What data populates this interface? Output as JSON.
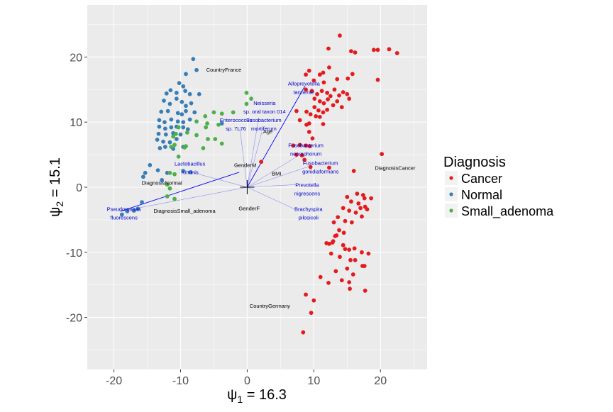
{
  "chart_data": {
    "type": "scatter",
    "xlabel_symbol": "ψ",
    "xlabel_sub": "1",
    "xlabel_rest": " = 16.3",
    "ylabel_symbol": "ψ",
    "ylabel_sub": "2",
    "ylabel_rest": " = 15.1",
    "xlim": [
      -24,
      27
    ],
    "ylim": [
      -28,
      28
    ],
    "x_ticks": [
      -20,
      -10,
      0,
      10,
      20
    ],
    "y_ticks": [
      -20,
      -10,
      0,
      10,
      20
    ],
    "x_tick_labels": [
      "-20",
      "-10",
      "0",
      "10",
      "20"
    ],
    "y_tick_labels": [
      "-20",
      "-10",
      "0",
      "10",
      "20"
    ],
    "grid": true,
    "legend": {
      "title": "Diagnosis",
      "placement": "right"
    },
    "series": [
      {
        "name": "Cancer",
        "color": "#e41a1c",
        "points": [
          [
            13.9,
            23.3
          ],
          [
            12.2,
            21.3
          ],
          [
            15.6,
            20.9
          ],
          [
            16.2,
            20.7
          ],
          [
            19.0,
            21.1
          ],
          [
            19.6,
            21.1
          ],
          [
            21.3,
            21.2
          ],
          [
            22.5,
            20.6
          ],
          [
            8.8,
            17.3
          ],
          [
            9.3,
            17.9
          ],
          [
            10.9,
            17.3
          ],
          [
            12.3,
            18.4
          ],
          [
            11.4,
            17.6
          ],
          [
            10.0,
            16.4
          ],
          [
            11.5,
            16.1
          ],
          [
            13.5,
            16.6
          ],
          [
            15.1,
            16.7
          ],
          [
            15.8,
            17.4
          ],
          [
            19.6,
            16.5
          ],
          [
            8.8,
            15.0
          ],
          [
            9.7,
            14.8
          ],
          [
            10.5,
            14.3
          ],
          [
            11.2,
            14.8
          ],
          [
            12.0,
            14.5
          ],
          [
            12.5,
            14.0
          ],
          [
            13.1,
            15.0
          ],
          [
            13.8,
            14.1
          ],
          [
            14.4,
            14.6
          ],
          [
            15.0,
            14.3
          ],
          [
            15.3,
            13.6
          ],
          [
            10.1,
            13.6
          ],
          [
            10.9,
            13.2
          ],
          [
            11.5,
            12.9
          ],
          [
            12.1,
            13.5
          ],
          [
            12.9,
            12.6
          ],
          [
            13.5,
            13.2
          ],
          [
            14.2,
            12.3
          ],
          [
            10.1,
            12.3
          ],
          [
            10.7,
            11.8
          ],
          [
            11.4,
            11.5
          ],
          [
            12.0,
            11.9
          ],
          [
            8.9,
            11.6
          ],
          [
            9.5,
            11.2
          ],
          [
            10.3,
            10.9
          ],
          [
            7.4,
            11.7
          ],
          [
            7.9,
            10.3
          ],
          [
            8.9,
            9.6
          ],
          [
            9.3,
            9.8
          ],
          [
            10.9,
            10.8
          ],
          [
            11.4,
            9.7
          ],
          [
            9.3,
            8.5
          ],
          [
            9.8,
            7.5
          ],
          [
            7.9,
            6.5
          ],
          [
            8.8,
            6.4
          ],
          [
            9.4,
            6.3
          ],
          [
            6.9,
            6.4
          ],
          [
            7.4,
            5.0
          ],
          [
            8.2,
            4.9
          ],
          [
            8.6,
            4.2
          ],
          [
            2.1,
            3.9
          ],
          [
            9.5,
            3.1
          ],
          [
            12.3,
            3.0
          ],
          [
            16.0,
            2.5
          ],
          [
            20.2,
            5.1
          ],
          [
            16.5,
            -1.0
          ],
          [
            17.4,
            -1.2
          ],
          [
            15.0,
            -1.5
          ],
          [
            15.6,
            -2.2
          ],
          [
            16.7,
            -2.5
          ],
          [
            17.6,
            -1.7
          ],
          [
            18.6,
            -1.7
          ],
          [
            14.4,
            -3.2
          ],
          [
            15.3,
            -3.6
          ],
          [
            16.3,
            -3.9
          ],
          [
            17.0,
            -3.2
          ],
          [
            17.7,
            -3.0
          ],
          [
            18.0,
            -3.4
          ],
          [
            13.6,
            -4.6
          ],
          [
            14.7,
            -5.2
          ],
          [
            15.7,
            -5.4
          ],
          [
            17.2,
            -4.5
          ],
          [
            13.0,
            -5.4
          ],
          [
            13.8,
            -6.6
          ],
          [
            14.5,
            -7.0
          ],
          [
            13.2,
            -7.5
          ],
          [
            12.9,
            -8.3
          ],
          [
            11.9,
            -8.6
          ],
          [
            12.3,
            -8.7
          ],
          [
            12.8,
            -8.5
          ],
          [
            13.4,
            -7.4
          ],
          [
            14.4,
            -8.9
          ],
          [
            14.7,
            -9.5
          ],
          [
            15.3,
            -9.6
          ],
          [
            16.1,
            -9.4
          ],
          [
            17.2,
            -10.0
          ],
          [
            18.2,
            -10.2
          ],
          [
            12.6,
            -10.2
          ],
          [
            13.9,
            -10.7
          ],
          [
            15.5,
            -11.2
          ],
          [
            16.2,
            -11.2
          ],
          [
            17.3,
            -12.1
          ],
          [
            15.0,
            -12.5
          ],
          [
            17.6,
            -12.1
          ],
          [
            13.3,
            -12.9
          ],
          [
            15.9,
            -13.4
          ],
          [
            11.0,
            -13.8
          ],
          [
            14.2,
            -14.3
          ],
          [
            15.3,
            -14.6
          ],
          [
            12.2,
            -14.7
          ],
          [
            15.4,
            -15.6
          ],
          [
            17.7,
            -15.9
          ],
          [
            8.8,
            -16.5
          ],
          [
            10.0,
            -17.4
          ],
          [
            9.6,
            -19.3
          ],
          [
            8.4,
            -22.3
          ]
        ]
      },
      {
        "name": "Normal",
        "color": "#377eb8",
        "points": [
          [
            -8.1,
            19.7
          ],
          [
            -9.2,
            17.4
          ],
          [
            -7.6,
            18.0
          ],
          [
            -10.2,
            16.0
          ],
          [
            -9.6,
            15.5
          ],
          [
            -12.1,
            14.4
          ],
          [
            -11.5,
            14.9
          ],
          [
            -10.6,
            14.5
          ],
          [
            -9.3,
            14.8
          ],
          [
            -8.6,
            14.3
          ],
          [
            -7.2,
            14.3
          ],
          [
            -12.5,
            13.3
          ],
          [
            -11.6,
            12.8
          ],
          [
            -10.6,
            13.6
          ],
          [
            -9.8,
            13.1
          ],
          [
            -9.2,
            12.5
          ],
          [
            -8.4,
            12.9
          ],
          [
            -12.9,
            11.6
          ],
          [
            -11.9,
            11.7
          ],
          [
            -10.4,
            11.4
          ],
          [
            -9.8,
            11.2
          ],
          [
            -9.2,
            11.7
          ],
          [
            -7.9,
            11.5
          ],
          [
            -13.2,
            10.3
          ],
          [
            -12.4,
            10.0
          ],
          [
            -11.4,
            10.4
          ],
          [
            -10.4,
            10.1
          ],
          [
            -9.6,
            10.0
          ],
          [
            -8.6,
            10.4
          ],
          [
            -13.2,
            9.3
          ],
          [
            -12.3,
            9.0
          ],
          [
            -11.4,
            9.2
          ],
          [
            -10.6,
            9.3
          ],
          [
            -9.6,
            9.2
          ],
          [
            -8.9,
            8.9
          ],
          [
            -13.3,
            8.2
          ],
          [
            -12.2,
            8.1
          ],
          [
            -11.1,
            8.3
          ],
          [
            -10.0,
            8.1
          ],
          [
            -13.5,
            7.3
          ],
          [
            -12.6,
            7.0
          ],
          [
            -11.6,
            6.9
          ],
          [
            -10.6,
            7.4
          ],
          [
            -13.1,
            6.0
          ],
          [
            -12.3,
            6.2
          ],
          [
            -11.1,
            5.9
          ],
          [
            -9.6,
            6.2
          ],
          [
            -3.8,
            9.8
          ],
          [
            -14.6,
            3.4
          ],
          [
            -13.4,
            2.6
          ],
          [
            -12.0,
            2.2
          ],
          [
            -9.6,
            2.5
          ],
          [
            -8.5,
            2.3
          ],
          [
            -15.3,
            2.2
          ],
          [
            -15.6,
            1.6
          ],
          [
            -12.8,
            1.1
          ],
          [
            -15.8,
            -2.3
          ],
          [
            -16.4,
            -3.3
          ],
          [
            -17.0,
            -3.6
          ],
          [
            -18.0,
            -3.7
          ],
          [
            -18.8,
            -4.2
          ]
        ]
      },
      {
        "name": "Small_adenoma",
        "color": "#4daf4a",
        "points": [
          [
            -0.1,
            14.5
          ],
          [
            0.6,
            13.6
          ],
          [
            -0.1,
            12.8
          ],
          [
            -5.0,
            11.5
          ],
          [
            -3.8,
            11.3
          ],
          [
            -2.1,
            11.5
          ],
          [
            -6.3,
            10.9
          ],
          [
            -7.6,
            10.1
          ],
          [
            -6.0,
            9.8
          ],
          [
            -4.3,
            9.6
          ],
          [
            -6.2,
            9.2
          ],
          [
            -10.3,
            9.2
          ],
          [
            -11.1,
            7.8
          ],
          [
            -10.9,
            6.5
          ],
          [
            -10.7,
            8.2
          ],
          [
            -9.0,
            8.4
          ],
          [
            -7.6,
            8.0
          ],
          [
            -5.9,
            7.4
          ],
          [
            -4.8,
            7.4
          ],
          [
            -11.4,
            6.2
          ],
          [
            -9.4,
            6.1
          ],
          [
            -6.6,
            6.0
          ],
          [
            -3.8,
            6.7
          ],
          [
            -9.2,
            6.3
          ],
          [
            -10.3,
            4.7
          ],
          [
            -11.6,
            2.2
          ],
          [
            -10.9,
            2.0
          ],
          [
            -12.0,
            0.4
          ],
          [
            -11.6,
            -0.2
          ],
          [
            -12.0,
            -1.4
          ],
          [
            -10.9,
            -1.8
          ]
        ]
      }
    ],
    "loadings": [
      {
        "label_lines": [
          "Alloprevotella",
          "tannerae"
        ],
        "arrow_to": [
          8.7,
          15.6
        ],
        "label_pos": [
          8.5,
          15.1
        ],
        "color": "#0000cc"
      },
      {
        "label_lines": [
          "Neisseria",
          "sp. oral taxon 014"
        ],
        "arrow_to": [
          1.7,
          10.5
        ],
        "label_pos": [
          2.6,
          12.1
        ],
        "color": "#0000cc"
      },
      {
        "label_lines": [
          "Enterococcus",
          "sp. 7L76"
        ],
        "arrow_to": [
          -1.1,
          9.0
        ],
        "label_pos": [
          -1.7,
          9.5
        ],
        "color": "#0000cc"
      },
      {
        "label_lines": [
          "Fusobacterium",
          "mortiferum"
        ],
        "arrow_to": [
          2.2,
          8.5
        ],
        "label_pos": [
          2.5,
          9.5
        ],
        "color": "#0000cc"
      },
      {
        "label_lines": [
          "Fusobacterium",
          "necrophorum"
        ],
        "arrow_to": [
          7.6,
          4.8
        ],
        "label_pos": [
          8.8,
          5.6
        ],
        "color": "#0000cc"
      },
      {
        "label_lines": [
          "Fusobacterium",
          "gonidiaformans"
        ],
        "arrow_to": [
          9.3,
          3.2
        ],
        "label_pos": [
          11.0,
          2.9
        ],
        "color": "#0000cc"
      },
      {
        "label_lines": [
          "Lactobacillus",
          "ruminis"
        ],
        "arrow_to": [
          -10.2,
          2.8
        ],
        "label_pos": [
          -8.6,
          2.8
        ],
        "color": "#0000cc"
      },
      {
        "label_lines": [
          "Prevotella",
          "nigrescens"
        ],
        "arrow_to": [
          7.4,
          0.4
        ],
        "label_pos": [
          9.0,
          -0.5
        ],
        "color": "#0000cc"
      },
      {
        "label_lines": [
          "Brachyspira",
          "pilosicoli"
        ],
        "arrow_to": [
          7.2,
          -3.4
        ],
        "label_pos": [
          9.2,
          -4.2
        ],
        "color": "#0000cc"
      },
      {
        "label_lines": [
          "Pseudomonas",
          "fluorescens"
        ],
        "arrow_to": [
          -19.0,
          -3.7
        ],
        "label_pos": [
          -18.5,
          -4.2
        ],
        "color": "#0000cc"
      }
    ],
    "covariates": [
      {
        "label": "CountryFrance",
        "pos": [
          -3.5,
          18.0
        ]
      },
      {
        "label": "Age",
        "pos": [
          3.1,
          8.5
        ]
      },
      {
        "label": "GenderM",
        "pos": [
          -0.3,
          3.3
        ]
      },
      {
        "label": "BMI",
        "pos": [
          4.4,
          2.0
        ]
      },
      {
        "label": "DiagnosisCancer",
        "pos": [
          22.2,
          2.9
        ]
      },
      {
        "label": "DiagnosisNormal",
        "pos": [
          -12.8,
          0.6
        ]
      },
      {
        "label": "DiagnosisSmall_adenoma",
        "pos": [
          -9.4,
          -3.7
        ]
      },
      {
        "label": "GenderF",
        "pos": [
          0.3,
          -3.3
        ]
      },
      {
        "label": "CountryGermany",
        "pos": [
          3.4,
          -18.3
        ]
      }
    ],
    "origin_marker": [
      0,
      0
    ],
    "origin_line_color": "#0000ff"
  }
}
